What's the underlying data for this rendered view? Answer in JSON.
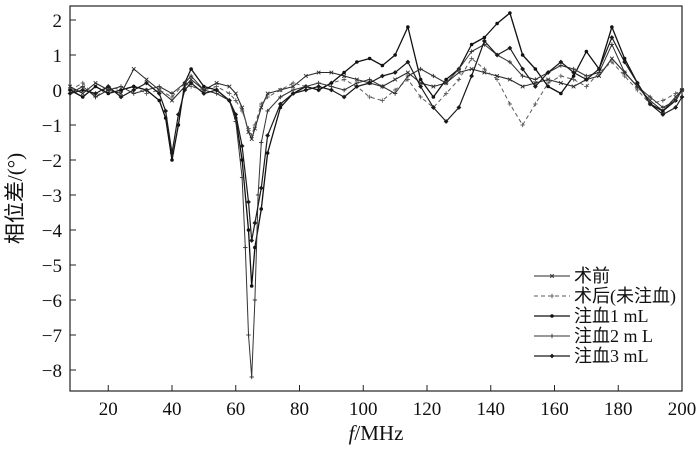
{
  "chart_data": {
    "type": "line",
    "xlabel_italic": "f",
    "xlabel_unit": "/MHz",
    "ylabel": "相位差/(°)",
    "xlim": [
      8,
      200
    ],
    "ylim": [
      -8.6,
      2.4
    ],
    "xticks": [
      20,
      40,
      60,
      80,
      100,
      120,
      140,
      160,
      180,
      200
    ],
    "yticks": [
      2,
      1,
      0,
      -1,
      -2,
      -3,
      -4,
      -5,
      -6,
      -7,
      -8
    ],
    "grid": false,
    "legend_position": "bottom-right",
    "series": [
      {
        "name": "术前",
        "marker": "x",
        "x": [
          8,
          12,
          16,
          20,
          24,
          28,
          32,
          36,
          40,
          44,
          46,
          50,
          54,
          58,
          60,
          62,
          64,
          65,
          66,
          68,
          70,
          74,
          78,
          82,
          86,
          90,
          94,
          98,
          102,
          106,
          110,
          114,
          118,
          122,
          126,
          130,
          134,
          138,
          142,
          146,
          150,
          154,
          158,
          162,
          166,
          170,
          174,
          178,
          182,
          186,
          190,
          194,
          198,
          200
        ],
        "y": [
          0.1,
          -0.1,
          0.2,
          0,
          -0.1,
          0.6,
          0.3,
          0,
          -0.3,
          0.1,
          0.3,
          0,
          0.2,
          0.1,
          -0.1,
          -0.5,
          -1.2,
          -1.4,
          -1.1,
          -0.5,
          -0.1,
          0,
          0.1,
          0.4,
          0.5,
          0.5,
          0.4,
          0.3,
          0.2,
          0.1,
          0.3,
          0.5,
          0.2,
          0.1,
          0.2,
          0.5,
          0.6,
          0.5,
          0.4,
          0.3,
          0.1,
          0.2,
          0.3,
          0.2,
          0.1,
          0.3,
          0.4,
          0.9,
          0.5,
          0.1,
          -0.3,
          -0.6,
          -0.2,
          0
        ]
      },
      {
        "name": "术后(未注血)",
        "marker": "+",
        "x": [
          8,
          12,
          16,
          20,
          24,
          28,
          32,
          36,
          40,
          44,
          46,
          50,
          54,
          58,
          60,
          62,
          64,
          65,
          66,
          68,
          70,
          74,
          78,
          82,
          86,
          90,
          94,
          98,
          102,
          106,
          110,
          114,
          118,
          122,
          126,
          130,
          134,
          138,
          142,
          146,
          150,
          154,
          158,
          162,
          166,
          170,
          174,
          178,
          182,
          186,
          190,
          194,
          198,
          200
        ],
        "y": [
          0,
          0.2,
          -0.2,
          0.1,
          0,
          0.1,
          -0.1,
          0,
          -0.2,
          0.2,
          0.1,
          0,
          0.1,
          -0.1,
          -0.3,
          -0.6,
          -1.1,
          -1.3,
          -1.0,
          -0.4,
          -0.2,
          0,
          0.2,
          0.1,
          0,
          0.2,
          0.3,
          0.1,
          -0.2,
          -0.3,
          0,
          0.3,
          -0.2,
          -0.5,
          -0.1,
          0.3,
          0.9,
          0.6,
          0.3,
          -0.4,
          -1.0,
          -0.4,
          0.2,
          0.4,
          0.3,
          0.1,
          0.5,
          0.8,
          0.4,
          0,
          -0.4,
          -0.3,
          -0.1,
          0
        ]
      },
      {
        "name": "注血1 mL",
        "marker": "dot",
        "x": [
          8,
          12,
          16,
          20,
          24,
          28,
          32,
          36,
          38,
          40,
          42,
          44,
          46,
          50,
          54,
          58,
          60,
          62,
          64,
          65,
          66,
          68,
          70,
          74,
          78,
          82,
          86,
          90,
          94,
          98,
          102,
          106,
          110,
          114,
          118,
          122,
          126,
          130,
          134,
          138,
          142,
          146,
          150,
          154,
          158,
          162,
          166,
          170,
          174,
          178,
          182,
          186,
          190,
          194,
          198,
          200
        ],
        "y": [
          0,
          -0.2,
          0.1,
          -0.1,
          0,
          0.1,
          0,
          -0.3,
          -0.8,
          -2.0,
          -1.0,
          0.2,
          0.6,
          0.1,
          0,
          -0.3,
          -0.8,
          -2.0,
          -4.0,
          -5.6,
          -4.5,
          -3.4,
          -1.8,
          -0.5,
          -0.1,
          0.1,
          0,
          0.2,
          0.5,
          0.8,
          0.9,
          0.7,
          1.0,
          1.8,
          0.3,
          -0.2,
          0.3,
          0.6,
          1.3,
          1.5,
          1.9,
          2.2,
          1.0,
          0.6,
          0.1,
          -0.1,
          0.4,
          1.1,
          0.6,
          1.8,
          0.9,
          0.2,
          -0.4,
          -0.6,
          -0.3,
          0
        ]
      },
      {
        "name": "注血2 m L",
        "marker": "+",
        "x": [
          8,
          12,
          16,
          20,
          24,
          28,
          32,
          36,
          40,
          44,
          46,
          50,
          54,
          58,
          60,
          62,
          63,
          64,
          65,
          66,
          67,
          68,
          70,
          74,
          78,
          82,
          86,
          90,
          94,
          98,
          102,
          106,
          110,
          114,
          118,
          122,
          126,
          130,
          134,
          138,
          142,
          146,
          150,
          154,
          158,
          162,
          166,
          170,
          174,
          178,
          182,
          186,
          190,
          194,
          198,
          200
        ],
        "y": [
          -0.1,
          0.1,
          -0.2,
          0,
          0.1,
          -0.1,
          0,
          0.1,
          -0.1,
          0.2,
          0.4,
          0,
          -0.1,
          -0.3,
          -0.9,
          -2.5,
          -4.5,
          -7.0,
          -8.2,
          -6.0,
          -3.0,
          -1.5,
          -0.6,
          -0.2,
          0,
          0.1,
          0.2,
          0.1,
          0,
          0.2,
          0.3,
          0.1,
          -0.1,
          0.4,
          0.6,
          0.4,
          0.2,
          0.6,
          1.1,
          1.3,
          1.0,
          0.8,
          0.4,
          0.3,
          0.5,
          0.7,
          0.6,
          0.4,
          0.5,
          1.3,
          0.5,
          0.1,
          -0.2,
          -0.5,
          -0.3,
          0
        ]
      },
      {
        "name": "注血3 mL",
        "marker": "diamond",
        "x": [
          8,
          12,
          16,
          20,
          24,
          28,
          32,
          36,
          38,
          40,
          42,
          44,
          46,
          50,
          54,
          58,
          60,
          62,
          64,
          65,
          66,
          68,
          70,
          74,
          78,
          82,
          86,
          90,
          94,
          98,
          102,
          106,
          110,
          114,
          118,
          122,
          126,
          130,
          134,
          138,
          142,
          146,
          150,
          154,
          158,
          162,
          166,
          170,
          174,
          178,
          182,
          186,
          190,
          194,
          198,
          200
        ],
        "y": [
          -0.1,
          0,
          -0.1,
          0.1,
          -0.2,
          0,
          0.2,
          -0.1,
          -0.6,
          -1.8,
          -0.7,
          0,
          0.2,
          -0.1,
          0,
          -0.3,
          -0.7,
          -1.6,
          -3.2,
          -4.3,
          -3.8,
          -2.8,
          -1.3,
          -0.4,
          -0.1,
          0,
          0.1,
          0,
          -0.2,
          0.1,
          0.2,
          0.4,
          0.5,
          0.8,
          0.1,
          -0.5,
          -0.9,
          -0.5,
          0.4,
          1.4,
          1.0,
          1.2,
          0.6,
          0.1,
          0.5,
          0.8,
          0.5,
          0.3,
          0.6,
          1.5,
          0.8,
          0.2,
          -0.4,
          -0.7,
          -0.5,
          -0.2
        ]
      }
    ]
  }
}
